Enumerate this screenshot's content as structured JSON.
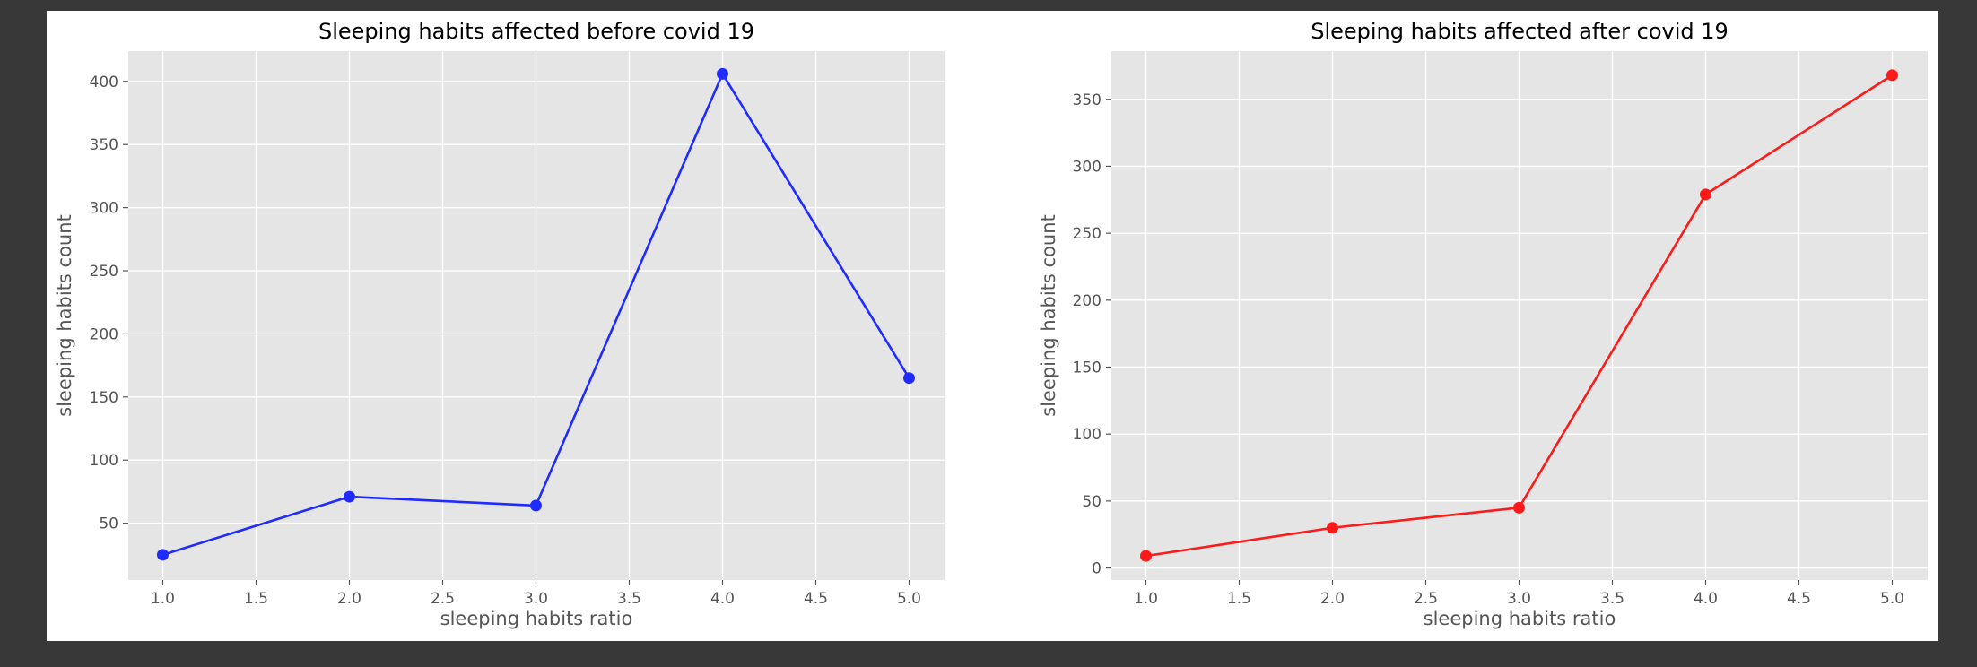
{
  "chart_data": [
    {
      "type": "line",
      "title": "Sleeping habits affected before covid 19",
      "xlabel": "sleeping habits ratio",
      "ylabel": "sleeping habits count",
      "x": [
        1.0,
        2.0,
        3.0,
        4.0,
        5.0
      ],
      "series": [
        {
          "values": [
            25,
            71,
            64,
            406,
            165
          ],
          "color": "#1f2bff"
        }
      ],
      "xticks": [
        "1.0",
        "1.5",
        "2.0",
        "2.5",
        "3.0",
        "3.5",
        "4.0",
        "4.5",
        "5.0"
      ],
      "yticks": [
        "50",
        "100",
        "150",
        "200",
        "250",
        "300",
        "350",
        "400"
      ],
      "xlim": [
        0.815,
        5.19
      ],
      "ylim": [
        5,
        424
      ],
      "grid": true,
      "marker": "circle"
    },
    {
      "type": "line",
      "title": "Sleeping habits affected after covid 19",
      "xlabel": "sleeping habits ratio",
      "ylabel": "sleeping habits count",
      "x": [
        1.0,
        2.0,
        3.0,
        4.0,
        5.0
      ],
      "series": [
        {
          "values": [
            9,
            30,
            45,
            279,
            368
          ],
          "color": "#ff1a1a"
        }
      ],
      "xticks": [
        "1.0",
        "1.5",
        "2.0",
        "2.5",
        "3.0",
        "3.5",
        "4.0",
        "4.5",
        "5.0"
      ],
      "yticks": [
        "0",
        "50",
        "100",
        "150",
        "200",
        "250",
        "300",
        "350"
      ],
      "xlim": [
        0.815,
        5.19
      ],
      "ylim": [
        -9,
        386
      ],
      "grid": true,
      "marker": "circle"
    }
  ],
  "style": {
    "background": "#383838",
    "figure_background": "#ffffff",
    "plot_background": "#e5e5e5",
    "grid_color": "#ffffff",
    "text_color": "#555555",
    "title_color": "#000000"
  }
}
